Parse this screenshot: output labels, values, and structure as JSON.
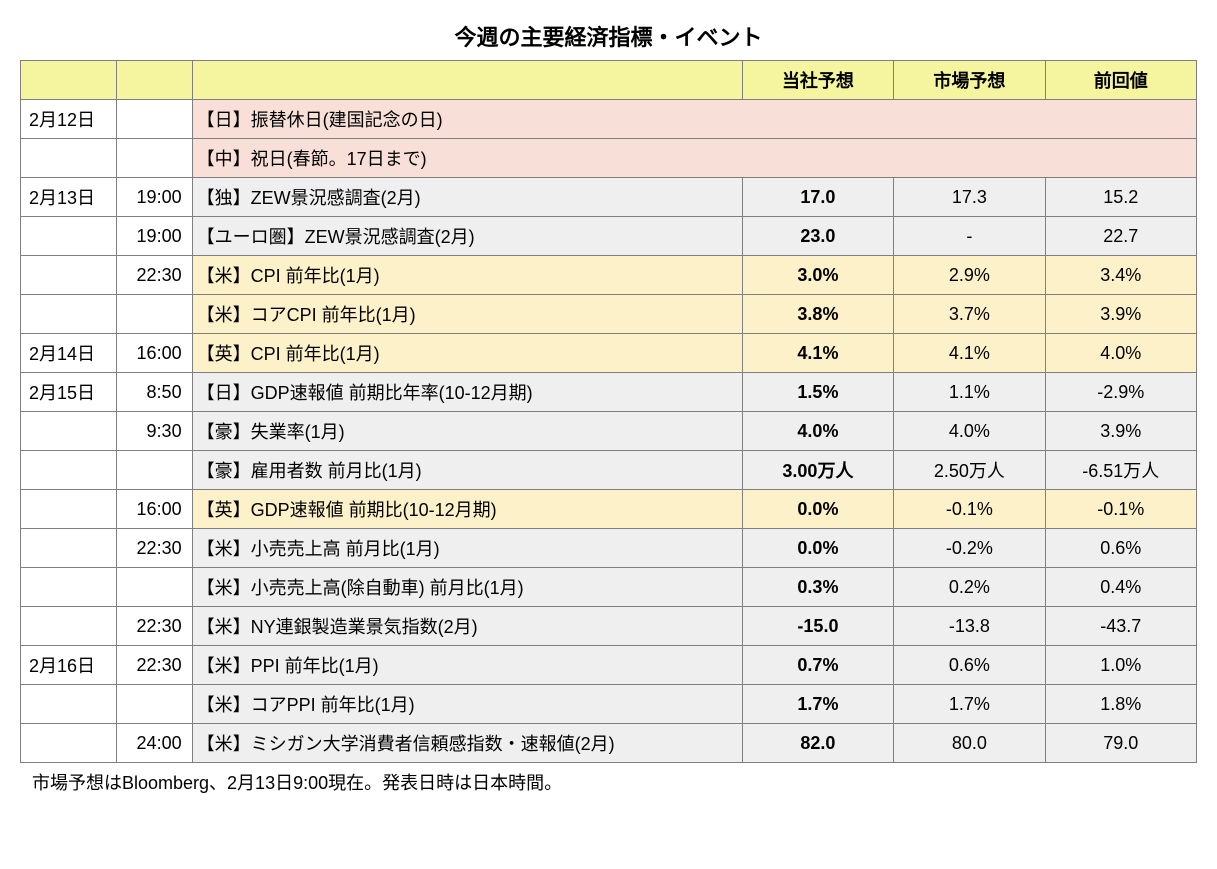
{
  "title": "今週の主要経済指標・イベント",
  "headers": {
    "h1": "当社予想",
    "h2": "市場予想",
    "h3": "前回値"
  },
  "note": "市場予想はBloomberg、2月13日9:00現在。発表日時は日本時間。",
  "colors": {
    "header_bg": "#f5f5a0",
    "gray_bg": "#efefef",
    "pink_bg": "#f8e0d8",
    "yellow_bg": "#fdf1c9",
    "border": "#7f7f7f"
  },
  "rows": [
    {
      "date": "2月12日",
      "time": "",
      "event": "【日】振替休日(建国記念の日)",
      "v1": "",
      "v2": "",
      "v3": "",
      "span": true,
      "event_bg": "pink",
      "date_bg": "white"
    },
    {
      "date": "",
      "time": "",
      "event": "【中】祝日(春節。17日まで)",
      "v1": "",
      "v2": "",
      "v3": "",
      "span": true,
      "event_bg": "pink",
      "date_bg": "white"
    },
    {
      "date": "2月13日",
      "time": "19:00",
      "event": "【独】ZEW景況感調査(2月)",
      "v1": "17.0",
      "v2": "17.3",
      "v3": "15.2",
      "span": false,
      "event_bg": "gray",
      "date_bg": "white"
    },
    {
      "date": "",
      "time": "19:00",
      "event": "【ユーロ圏】ZEW景況感調査(2月)",
      "v1": "23.0",
      "v2": "-",
      "v3": "22.7",
      "span": false,
      "event_bg": "gray",
      "date_bg": "white"
    },
    {
      "date": "",
      "time": "22:30",
      "event": "【米】CPI 前年比(1月)",
      "v1": "3.0%",
      "v2": "2.9%",
      "v3": "3.4%",
      "span": false,
      "event_bg": "yellow",
      "date_bg": "white"
    },
    {
      "date": "",
      "time": "",
      "event": "【米】コアCPI 前年比(1月)",
      "v1": "3.8%",
      "v2": "3.7%",
      "v3": "3.9%",
      "span": false,
      "event_bg": "yellow",
      "date_bg": "white"
    },
    {
      "date": "2月14日",
      "time": "16:00",
      "event": "【英】CPI 前年比(1月)",
      "v1": "4.1%",
      "v2": "4.1%",
      "v3": "4.0%",
      "span": false,
      "event_bg": "yellow",
      "date_bg": "white"
    },
    {
      "date": "2月15日",
      "time": "8:50",
      "event": "【日】GDP速報値 前期比年率(10-12月期)",
      "v1": "1.5%",
      "v2": "1.1%",
      "v3": "-2.9%",
      "span": false,
      "event_bg": "gray",
      "date_bg": "white"
    },
    {
      "date": "",
      "time": "9:30",
      "event": "【豪】失業率(1月)",
      "v1": "4.0%",
      "v2": "4.0%",
      "v3": "3.9%",
      "span": false,
      "event_bg": "gray",
      "date_bg": "white"
    },
    {
      "date": "",
      "time": "",
      "event": "【豪】雇用者数 前月比(1月)",
      "v1": "3.00万人",
      "v2": "2.50万人",
      "v3": "-6.51万人",
      "span": false,
      "event_bg": "gray",
      "date_bg": "white"
    },
    {
      "date": "",
      "time": "16:00",
      "event": "【英】GDP速報値 前期比(10-12月期)",
      "v1": "0.0%",
      "v2": "-0.1%",
      "v3": "-0.1%",
      "span": false,
      "event_bg": "yellow",
      "date_bg": "white"
    },
    {
      "date": "",
      "time": "22:30",
      "event": "【米】小売売上高 前月比(1月)",
      "v1": "0.0%",
      "v2": "-0.2%",
      "v3": "0.6%",
      "span": false,
      "event_bg": "gray",
      "date_bg": "white"
    },
    {
      "date": "",
      "time": "",
      "event": "【米】小売売上高(除自動車) 前月比(1月)",
      "v1": "0.3%",
      "v2": "0.2%",
      "v3": "0.4%",
      "span": false,
      "event_bg": "gray",
      "date_bg": "white"
    },
    {
      "date": "",
      "time": "22:30",
      "event": "【米】NY連銀製造業景気指数(2月)",
      "v1": "-15.0",
      "v2": "-13.8",
      "v3": "-43.7",
      "span": false,
      "event_bg": "gray",
      "date_bg": "white"
    },
    {
      "date": "2月16日",
      "time": "22:30",
      "event": "【米】PPI 前年比(1月)",
      "v1": "0.7%",
      "v2": "0.6%",
      "v3": "1.0%",
      "span": false,
      "event_bg": "gray",
      "date_bg": "white"
    },
    {
      "date": "",
      "time": "",
      "event": "【米】コアPPI 前年比(1月)",
      "v1": "1.7%",
      "v2": "1.7%",
      "v3": "1.8%",
      "span": false,
      "event_bg": "gray",
      "date_bg": "white"
    },
    {
      "date": "",
      "time": "24:00",
      "event": "【米】ミシガン大学消費者信頼感指数・速報値(2月)",
      "v1": "82.0",
      "v2": "80.0",
      "v3": "79.0",
      "span": false,
      "event_bg": "gray",
      "date_bg": "white"
    }
  ]
}
